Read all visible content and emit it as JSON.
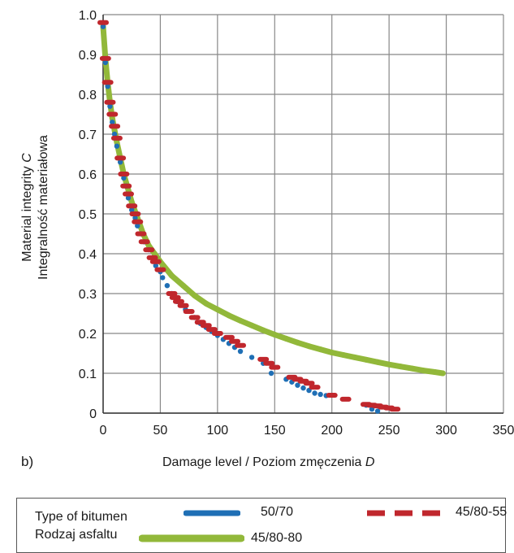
{
  "chart_data": {
    "type": "scatter",
    "panel_label": "b)",
    "ylabel_line1": "Material integrity C",
    "ylabel_line2": "Integralność materiałowa",
    "xlabel_text": "Damage level / Poziom zmęczenia ",
    "xlabel_var": "D",
    "xlim": [
      0,
      350
    ],
    "ylim": [
      0,
      1.0
    ],
    "x_ticks": [
      "0",
      "50",
      "100",
      "150",
      "200",
      "250",
      "300",
      "350"
    ],
    "y_ticks": [
      "0",
      "0.1",
      "0.2",
      "0.3",
      "0.4",
      "0.5",
      "0.6",
      "0.7",
      "0.8",
      "0.9",
      "1.0"
    ],
    "grid": true,
    "legend_placement": "bottom",
    "legend_title_line1": "Type of bitumen",
    "legend_title_line2": "Rodzaj asfaltu",
    "series": [
      {
        "name": "50/70",
        "color": "#1f6fb5",
        "style": "dots",
        "x": [
          0,
          2,
          4,
          6,
          8,
          10,
          12,
          15,
          18,
          20,
          22,
          25,
          28,
          30,
          33,
          36,
          40,
          43,
          46,
          50,
          52,
          56,
          60,
          65,
          72,
          80,
          85,
          90,
          95,
          100,
          105,
          110,
          115,
          120,
          130,
          140,
          147,
          160,
          165,
          170,
          175,
          180,
          185,
          190,
          195,
          230,
          235,
          240
        ],
        "y": [
          0.97,
          0.88,
          0.82,
          0.77,
          0.73,
          0.7,
          0.67,
          0.63,
          0.59,
          0.57,
          0.54,
          0.51,
          0.49,
          0.47,
          0.45,
          0.43,
          0.41,
          0.39,
          0.37,
          0.355,
          0.34,
          0.32,
          0.3,
          0.28,
          0.26,
          0.24,
          0.225,
          0.215,
          0.205,
          0.195,
          0.185,
          0.175,
          0.165,
          0.155,
          0.14,
          0.125,
          0.1,
          0.085,
          0.078,
          0.07,
          0.063,
          0.057,
          0.05,
          0.047,
          0.044,
          0.02,
          0.01,
          0.005
        ]
      },
      {
        "name": "45/80-55",
        "color": "#c0272d",
        "style": "dashes",
        "x": [
          0,
          2,
          4,
          6,
          8,
          10,
          12,
          15,
          18,
          20,
          22,
          25,
          28,
          30,
          33,
          36,
          40,
          43,
          46,
          50,
          60,
          63,
          66,
          70,
          75,
          80,
          85,
          90,
          95,
          100,
          110,
          115,
          120,
          140,
          145,
          150,
          165,
          170,
          175,
          180,
          185,
          200,
          212,
          230,
          235,
          240,
          245,
          250,
          255
        ],
        "y": [
          0.98,
          0.89,
          0.83,
          0.78,
          0.75,
          0.72,
          0.69,
          0.64,
          0.6,
          0.57,
          0.55,
          0.52,
          0.5,
          0.48,
          0.45,
          0.43,
          0.41,
          0.39,
          0.38,
          0.36,
          0.3,
          0.29,
          0.28,
          0.27,
          0.255,
          0.24,
          0.228,
          0.22,
          0.21,
          0.2,
          0.19,
          0.18,
          0.17,
          0.135,
          0.125,
          0.115,
          0.09,
          0.085,
          0.08,
          0.075,
          0.065,
          0.045,
          0.035,
          0.022,
          0.02,
          0.018,
          0.015,
          0.013,
          0.01
        ]
      },
      {
        "name": "45/80-80",
        "color": "#92b83a",
        "style": "line",
        "x": [
          0,
          2,
          4,
          6,
          8,
          10,
          12,
          15,
          18,
          20,
          25,
          30,
          35,
          40,
          45,
          50,
          60,
          70,
          80,
          90,
          100,
          110,
          120,
          130,
          140,
          150,
          160,
          170,
          180,
          190,
          200,
          210,
          220,
          230,
          240,
          250,
          260,
          270,
          280,
          290,
          297
        ],
        "y": [
          0.97,
          0.89,
          0.83,
          0.78,
          0.74,
          0.71,
          0.68,
          0.64,
          0.6,
          0.58,
          0.53,
          0.49,
          0.45,
          0.42,
          0.4,
          0.38,
          0.345,
          0.32,
          0.295,
          0.275,
          0.26,
          0.245,
          0.232,
          0.22,
          0.208,
          0.197,
          0.187,
          0.177,
          0.168,
          0.16,
          0.152,
          0.146,
          0.14,
          0.134,
          0.128,
          0.122,
          0.117,
          0.112,
          0.107,
          0.103,
          0.1
        ]
      }
    ]
  }
}
